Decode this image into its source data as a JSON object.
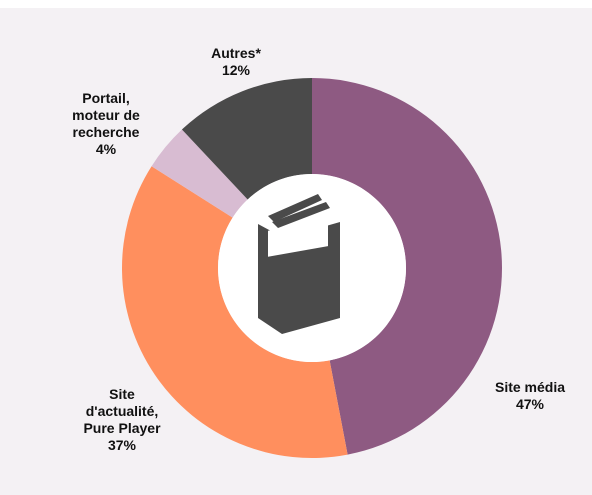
{
  "chart_data": {
    "type": "donut",
    "categories": [
      "Site média",
      "Site d'actualité, Pure Player",
      "Portail, moteur de recherche",
      "Autres*"
    ],
    "values": [
      47,
      37,
      4,
      12
    ],
    "value_labels": [
      "47%",
      "37%",
      "4%",
      "12%"
    ],
    "colors": [
      "#8e5a82",
      "#ff8f5e",
      "#d8bcd2",
      "#4a4a4a"
    ]
  }
}
